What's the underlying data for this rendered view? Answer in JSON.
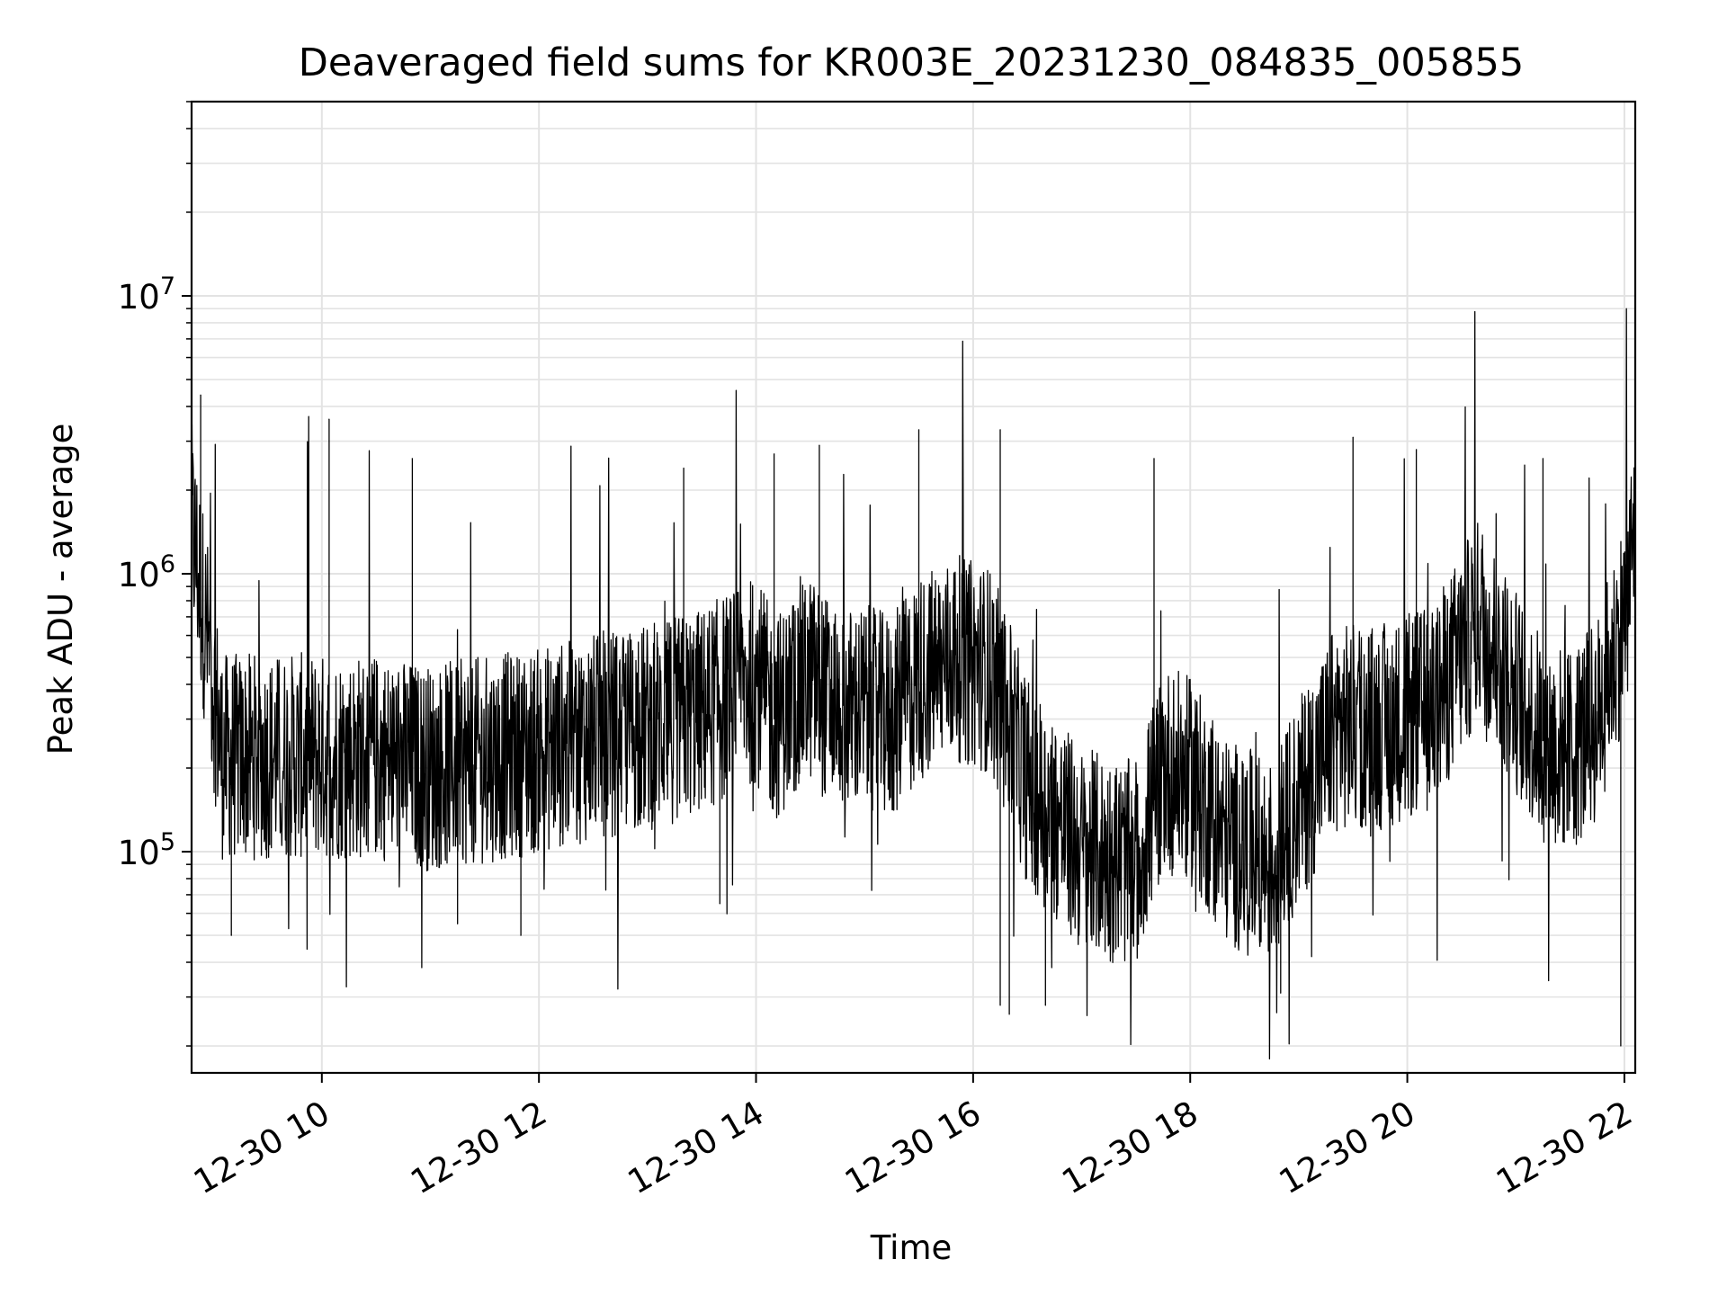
{
  "chart_data": {
    "type": "line",
    "title": "Deaveraged field sums for KR003E_20231230_084835_005855",
    "xlabel": "Time",
    "ylabel": "Peak ADU - average",
    "y_scale": "log",
    "ylim": [
      16000,
      50000000
    ],
    "xlim": [
      "2023-12-30 08:48",
      "2023-12-30 22:06"
    ],
    "grid": true,
    "x_ticks": [
      {
        "t": "2023-12-30 10:00",
        "label": "12-30 10"
      },
      {
        "t": "2023-12-30 12:00",
        "label": "12-30 12"
      },
      {
        "t": "2023-12-30 14:00",
        "label": "12-30 14"
      },
      {
        "t": "2023-12-30 16:00",
        "label": "12-30 16"
      },
      {
        "t": "2023-12-30 18:00",
        "label": "12-30 18"
      },
      {
        "t": "2023-12-30 20:00",
        "label": "12-30 20"
      },
      {
        "t": "2023-12-30 22:00",
        "label": "12-30 22"
      }
    ],
    "y_ticks": [
      {
        "value": 100000,
        "base": "10",
        "exp": "5"
      },
      {
        "value": 1000000,
        "base": "10",
        "exp": "6"
      },
      {
        "value": 10000000,
        "base": "10",
        "exp": "7"
      }
    ],
    "series": [
      {
        "color": "#000000",
        "note_envelope": "Dense noisy trace; values listed are the approximate running median and extreme spikes read from the plot.",
        "median": [
          {
            "t": "2023-12-30 08:48",
            "y": 1500000
          },
          {
            "t": "2023-12-30 08:55",
            "y": 700000
          },
          {
            "t": "2023-12-30 09:00",
            "y": 400000
          },
          {
            "t": "2023-12-30 09:05",
            "y": 220000
          },
          {
            "t": "2023-12-30 10:00",
            "y": 220000
          },
          {
            "t": "2023-12-30 10:30",
            "y": 220000
          },
          {
            "t": "2023-12-30 11:00",
            "y": 200000
          },
          {
            "t": "2023-12-30 12:00",
            "y": 230000
          },
          {
            "t": "2023-12-30 12:30",
            "y": 260000
          },
          {
            "t": "2023-12-30 13:00",
            "y": 280000
          },
          {
            "t": "2023-12-30 13:30",
            "y": 320000
          },
          {
            "t": "2023-12-30 14:00",
            "y": 420000
          },
          {
            "t": "2023-12-30 14:10",
            "y": 300000
          },
          {
            "t": "2023-12-30 14:30",
            "y": 420000
          },
          {
            "t": "2023-12-30 14:45",
            "y": 320000
          },
          {
            "t": "2023-12-30 15:00",
            "y": 330000
          },
          {
            "t": "2023-12-30 15:15",
            "y": 300000
          },
          {
            "t": "2023-12-30 15:30",
            "y": 420000
          },
          {
            "t": "2023-12-30 15:50",
            "y": 500000
          },
          {
            "t": "2023-12-30 16:10",
            "y": 450000
          },
          {
            "t": "2023-12-30 16:30",
            "y": 180000
          },
          {
            "t": "2023-12-30 17:00",
            "y": 100000
          },
          {
            "t": "2023-12-30 17:30",
            "y": 90000
          },
          {
            "t": "2023-12-30 17:45",
            "y": 200000
          },
          {
            "t": "2023-12-30 18:00",
            "y": 180000
          },
          {
            "t": "2023-12-30 18:20",
            "y": 110000
          },
          {
            "t": "2023-12-30 18:45",
            "y": 90000
          },
          {
            "t": "2023-12-30 19:00",
            "y": 150000
          },
          {
            "t": "2023-12-30 19:20",
            "y": 280000
          },
          {
            "t": "2023-12-30 19:45",
            "y": 280000
          },
          {
            "t": "2023-12-30 20:15",
            "y": 330000
          },
          {
            "t": "2023-12-30 20:40",
            "y": 700000
          },
          {
            "t": "2023-12-30 21:00",
            "y": 380000
          },
          {
            "t": "2023-12-30 21:15",
            "y": 250000
          },
          {
            "t": "2023-12-30 21:30",
            "y": 230000
          },
          {
            "t": "2023-12-30 21:45",
            "y": 300000
          },
          {
            "t": "2023-12-30 22:00",
            "y": 700000
          },
          {
            "t": "2023-12-30 22:06",
            "y": 1500000
          }
        ],
        "spikes": [
          {
            "t": "2023-12-30 08:53",
            "y": 4400000
          },
          {
            "t": "2023-12-30 09:10",
            "y": 50000
          },
          {
            "t": "2023-12-30 10:04",
            "y": 3600000
          },
          {
            "t": "2023-12-30 10:50",
            "y": 2600000
          },
          {
            "t": "2023-12-30 11:15",
            "y": 55000
          },
          {
            "t": "2023-12-30 11:50",
            "y": 50000
          },
          {
            "t": "2023-12-30 13:20",
            "y": 2400000
          },
          {
            "t": "2023-12-30 13:40",
            "y": 65000
          },
          {
            "t": "2023-12-30 14:10",
            "y": 2700000
          },
          {
            "t": "2023-12-30 14:35",
            "y": 2900000
          },
          {
            "t": "2023-12-30 15:30",
            "y": 3300000
          },
          {
            "t": "2023-12-30 16:15",
            "y": 3300000
          },
          {
            "t": "2023-12-30 16:15",
            "y": 28000
          },
          {
            "t": "2023-12-30 16:20",
            "y": 26000
          },
          {
            "t": "2023-12-30 16:40",
            "y": 28000
          },
          {
            "t": "2023-12-30 17:40",
            "y": 2600000
          },
          {
            "t": "2023-12-30 18:50",
            "y": 31000
          },
          {
            "t": "2023-12-30 19:30",
            "y": 3100000
          },
          {
            "t": "2023-12-30 20:05",
            "y": 2800000
          },
          {
            "t": "2023-12-30 21:15",
            "y": 2600000
          },
          {
            "t": "2023-12-30 21:58",
            "y": 20000
          },
          {
            "t": "2023-12-30 22:06",
            "y": 10000000
          }
        ]
      }
    ]
  }
}
